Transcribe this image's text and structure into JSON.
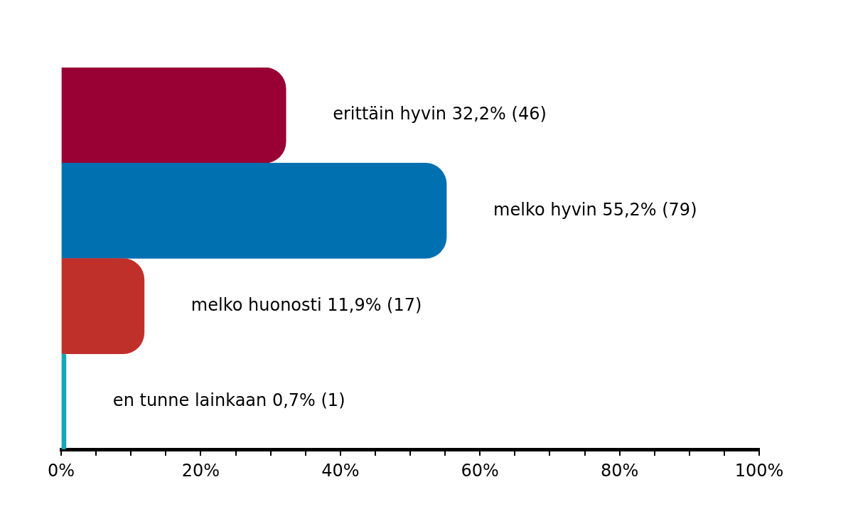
{
  "chart_data": {
    "type": "bar",
    "orientation": "horizontal",
    "categories": [
      null,
      null,
      null,
      null
    ],
    "values": [
      32.2,
      55.2,
      11.9,
      0.7
    ],
    "colors": [
      "#990033",
      "#0070b0",
      "#c0302a",
      "#16a7b8"
    ],
    "value_labels": [
      "erittäin hyvin 32,2% (46)",
      "melko hyvin 55,2% (79)",
      "melko huonosti 11,9% (17)",
      "en tunne lainkaan 0,7% (1)"
    ],
    "xlim": [
      0,
      100
    ],
    "xticks": [
      {
        "value": 0,
        "label": "0%"
      },
      {
        "value": 5,
        "label": null
      },
      {
        "value": 10,
        "label": null
      },
      {
        "value": 15,
        "label": null
      },
      {
        "value": 20,
        "label": "20%"
      },
      {
        "value": 25,
        "label": null
      },
      {
        "value": 30,
        "label": null
      },
      {
        "value": 35,
        "label": null
      },
      {
        "value": 40,
        "label": "40%"
      },
      {
        "value": 45,
        "label": null
      },
      {
        "value": 50,
        "label": null
      },
      {
        "value": 55,
        "label": null
      },
      {
        "value": 60,
        "label": "60%"
      },
      {
        "value": 65,
        "label": null
      },
      {
        "value": 70,
        "label": null
      },
      {
        "value": 75,
        "label": null
      },
      {
        "value": 80,
        "label": "80%"
      },
      {
        "value": 85,
        "label": null
      },
      {
        "value": 90,
        "label": null
      },
      {
        "value": 95,
        "label": null
      },
      {
        "value": 100,
        "label": "100%"
      }
    ],
    "grid": false,
    "legend": false
  }
}
